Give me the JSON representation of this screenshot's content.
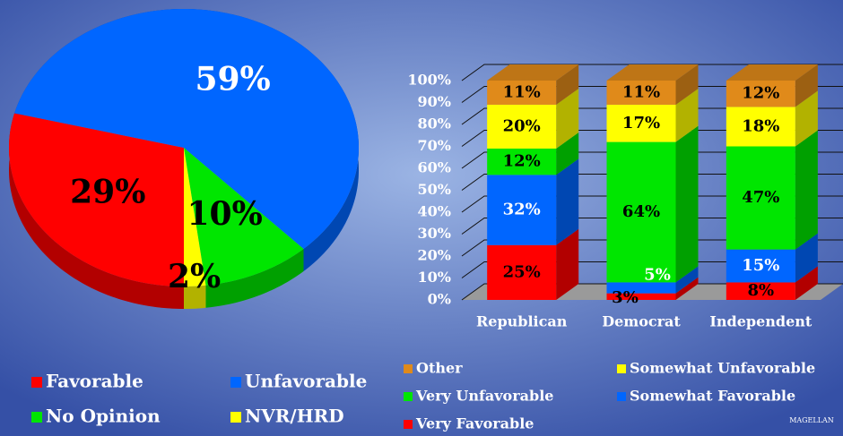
{
  "chart_data": [
    {
      "type": "pie",
      "categories": [
        "Favorable",
        "Unfavorable",
        "No Opinion",
        "NVR/HRD"
      ],
      "values": [
        29,
        59,
        10,
        2
      ],
      "value_labels": [
        "29%",
        "59%",
        "10%",
        "2%"
      ],
      "colors": [
        "#ff0000",
        "#0066ff",
        "#00e600",
        "#ffff00"
      ],
      "label_colors": [
        "#000000",
        "#ffffff",
        "#000000",
        "#000000"
      ]
    },
    {
      "type": "bar",
      "stacked": true,
      "categories": [
        "Republican",
        "Democrat",
        "Independent"
      ],
      "series": [
        {
          "name": "Very Favorable",
          "color": "#ff0000",
          "label_color": "#000000",
          "values": [
            25,
            3,
            8
          ],
          "value_labels": [
            "25%",
            "3%",
            "8%"
          ]
        },
        {
          "name": "Somewhat Favorable",
          "color": "#0066ff",
          "label_color": "#ffffff",
          "values": [
            32,
            5,
            15
          ],
          "value_labels": [
            "32%",
            "5%",
            "15%"
          ]
        },
        {
          "name": "Very Unfavorable",
          "color": "#00e600",
          "label_color": "#000000",
          "values": [
            12,
            64,
            47
          ],
          "value_labels": [
            "12%",
            "64%",
            "47%"
          ]
        },
        {
          "name": "Somewhat Unfavorable",
          "color": "#ffff00",
          "label_color": "#000000",
          "values": [
            20,
            17,
            18
          ],
          "value_labels": [
            "20%",
            "17%",
            "18%"
          ]
        },
        {
          "name": "Other",
          "color": "#e08a1a",
          "label_color": "#000000",
          "values": [
            11,
            11,
            12
          ],
          "value_labels": [
            "11%",
            "11%",
            "12%"
          ]
        }
      ],
      "ylim": [
        0,
        100
      ],
      "yticks": [
        {
          "value": 0,
          "label": "0%"
        },
        {
          "value": 10,
          "label": "10%"
        },
        {
          "value": 20,
          "label": "20%"
        },
        {
          "value": 30,
          "label": "30%"
        },
        {
          "value": 40,
          "label": "40%"
        },
        {
          "value": 50,
          "label": "50%"
        },
        {
          "value": 60,
          "label": "60%"
        },
        {
          "value": 70,
          "label": "70%"
        },
        {
          "value": 80,
          "label": "80%"
        },
        {
          "value": 90,
          "label": "90%"
        },
        {
          "value": 100,
          "label": "100%"
        }
      ],
      "grid": true
    }
  ],
  "logo": "MAGELLAN"
}
